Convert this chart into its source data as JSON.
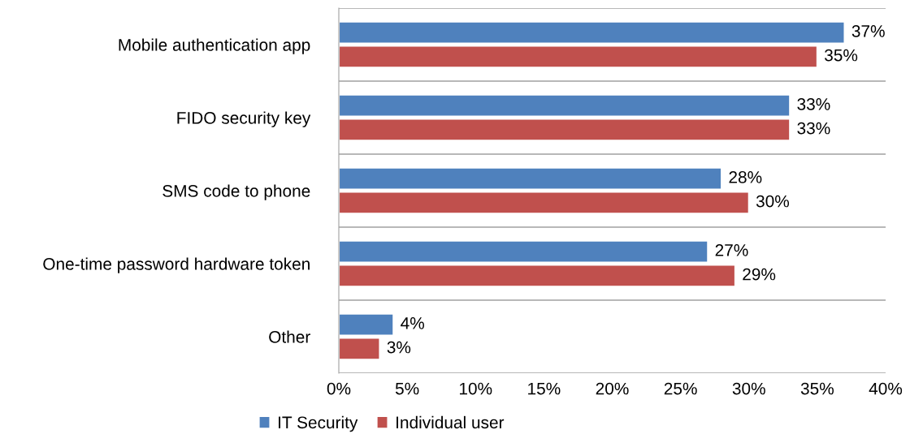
{
  "chart_data": {
    "type": "bar",
    "orientation": "horizontal",
    "categories": [
      "Mobile authentication app",
      "FIDO security key",
      "SMS code to phone",
      "One-time password hardware token",
      "Other"
    ],
    "series": [
      {
        "name": "IT Security",
        "color": "#4f81bd",
        "values": [
          37,
          33,
          28,
          27,
          4
        ],
        "value_labels": [
          "37%",
          "33%",
          "28%",
          "27%",
          "4%"
        ]
      },
      {
        "name": "Individual user",
        "color": "#c0504d",
        "values": [
          35,
          33,
          30,
          29,
          3
        ],
        "value_labels": [
          "35%",
          "33%",
          "30%",
          "29%",
          "3%"
        ]
      }
    ],
    "xlim": [
      0,
      40
    ],
    "xticks": [
      {
        "value": 0,
        "label": "0%"
      },
      {
        "value": 5,
        "label": "5%"
      },
      {
        "value": 10,
        "label": "10%"
      },
      {
        "value": 15,
        "label": "15%"
      },
      {
        "value": 20,
        "label": "20%"
      },
      {
        "value": 25,
        "label": "25%"
      },
      {
        "value": 30,
        "label": "30%"
      },
      {
        "value": 35,
        "label": "35%"
      },
      {
        "value": 40,
        "label": "40%"
      }
    ],
    "grid": "y",
    "legend": "bottom"
  }
}
